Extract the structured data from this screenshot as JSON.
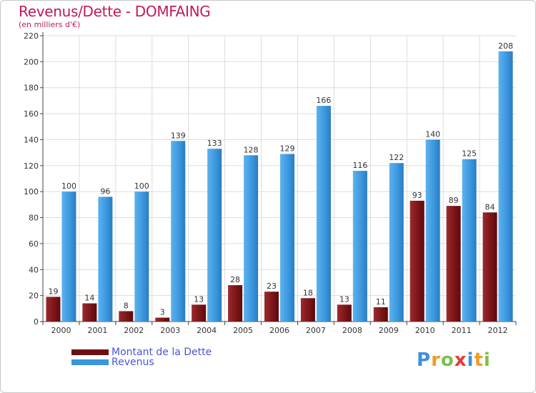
{
  "header": {
    "title": "Revenus/Dette - DOMFAING",
    "subtitle": "(en milliers d'€)"
  },
  "logo": {
    "text": "Proxiti",
    "letters": [
      "P",
      "r",
      "o",
      "x",
      "i",
      "t",
      "i"
    ]
  },
  "colors": {
    "title": "#c2185b",
    "dette": "#7a1416",
    "revenus": "#3a96dd",
    "legend_text": "#4a55d6"
  },
  "chart_data": {
    "type": "bar",
    "title": "Revenus/Dette - DOMFAING",
    "subtitle": "(en milliers d'€)",
    "categories": [
      "2000",
      "2001",
      "2002",
      "2003",
      "2004",
      "2005",
      "2006",
      "2007",
      "2008",
      "2009",
      "2010",
      "2011",
      "2012"
    ],
    "series": [
      {
        "name": "Montant de la Dette",
        "values": [
          19,
          14,
          8,
          3,
          13,
          28,
          23,
          18,
          13,
          11,
          93,
          89,
          84
        ]
      },
      {
        "name": "Revenus",
        "values": [
          100,
          96,
          100,
          139,
          133,
          128,
          129,
          166,
          116,
          122,
          140,
          125,
          208
        ]
      }
    ],
    "ylim": [
      0,
      220
    ],
    "yticks": [
      0,
      20,
      40,
      60,
      80,
      100,
      120,
      140,
      160,
      180,
      200,
      220
    ],
    "grid": true,
    "legend": "bottom-left"
  }
}
